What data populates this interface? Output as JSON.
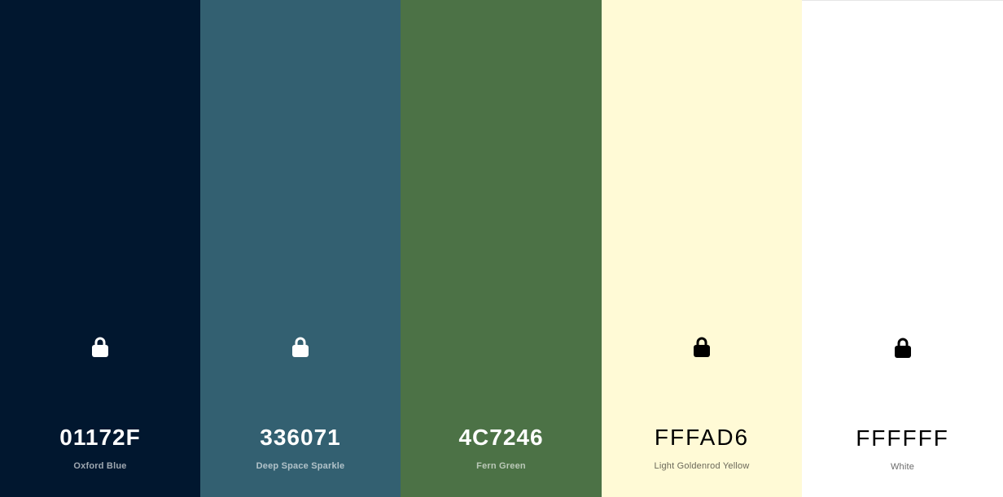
{
  "palette": {
    "colors": [
      {
        "hex": "01172F",
        "name": "Oxford Blue",
        "background": "#01172F",
        "text_theme": "dark",
        "lock_icon": "lock-icon",
        "lock_visible": true
      },
      {
        "hex": "336071",
        "name": "Deep Space Sparkle",
        "background": "#336071",
        "text_theme": "dark",
        "lock_icon": "lock-icon",
        "lock_visible": true
      },
      {
        "hex": "4C7246",
        "name": "Fern Green",
        "background": "#4C7246",
        "text_theme": "dark",
        "lock_icon": "lock-icon",
        "lock_visible": false
      },
      {
        "hex": "FFFAD6",
        "name": "Light Goldenrod Yellow",
        "background": "#FFFAD6",
        "text_theme": "light",
        "lock_icon": "lock-icon",
        "lock_visible": true
      },
      {
        "hex": "FFFFFF",
        "name": "White",
        "background": "#FFFFFF",
        "text_theme": "light",
        "lock_icon": "lock-icon",
        "lock_visible": true
      }
    ]
  }
}
